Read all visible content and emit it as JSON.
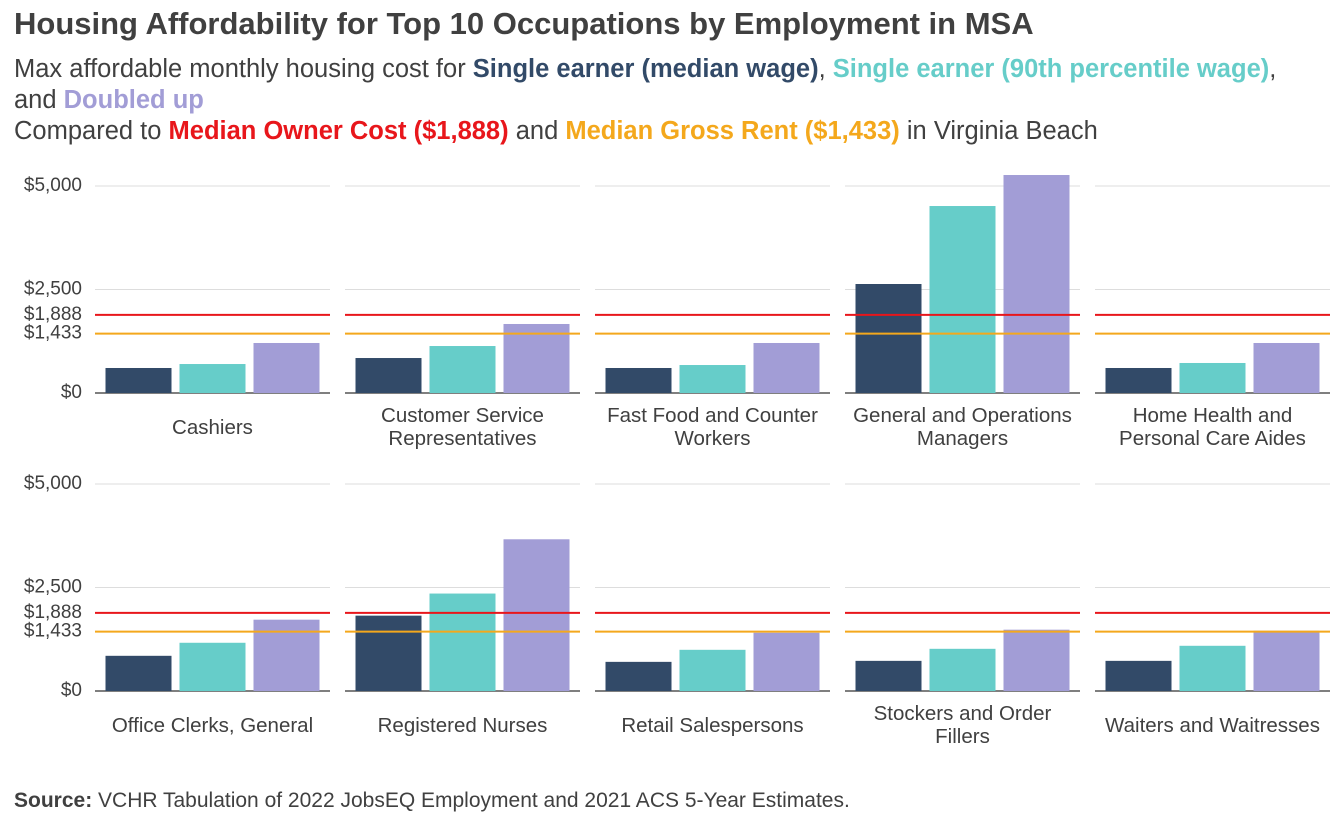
{
  "chart_data": {
    "type": "bar",
    "title": "Housing Affordability for Top 10 Occupations by Employment in MSA",
    "subtitle": {
      "lead": "Max affordable monthly housing cost for",
      "sep1": ",",
      "sep2": ", and",
      "compare": "Compared to",
      "join": "and",
      "place": "in Virginia Beach"
    },
    "categories": [
      "Cashiers",
      "Customer Service Representatives",
      "Fast Food and Counter Workers",
      "General and Operations Managers",
      "Home Health and Personal Care Aides",
      "Office Clerks, General",
      "Registered Nurses",
      "Retail Salespersons",
      "Stockers and Order Fillers",
      "Waiters and Waitresses"
    ],
    "series": [
      {
        "name": "Single earner (median wage)",
        "color": "#324a68",
        "values": [
          604,
          845,
          604,
          2633,
          604,
          850,
          1820,
          704,
          728,
          728
        ]
      },
      {
        "name": "Single earner (90th percentile wage)",
        "color": "#66cdc9",
        "values": [
          700,
          1135,
          676,
          4517,
          725,
          1165,
          2354,
          995,
          1019,
          1092
        ]
      },
      {
        "name": "Doubled up",
        "color": "#a29dd6",
        "values": [
          1208,
          1667,
          1208,
          5266,
          1208,
          1723,
          3665,
          1408,
          1481,
          1456
        ]
      }
    ],
    "reference_lines": [
      {
        "label": "Median Owner Cost ($1,888)",
        "value": 1888,
        "color": "#e8161b"
      },
      {
        "label": "Median Gross Rent ($1,433)",
        "value": 1433,
        "color": "#f4a81c"
      }
    ],
    "ylim": [
      0,
      5300
    ],
    "yticks": [
      {
        "value": 0,
        "label": "$0"
      },
      {
        "value": 1433,
        "label": "$1,433"
      },
      {
        "value": 1888,
        "label": "$1,888"
      },
      {
        "value": 2500,
        "label": "$2,500"
      },
      {
        "value": 5000,
        "label": "$5,000"
      }
    ],
    "grid": true,
    "source_label": "Source:",
    "source": "VCHR Tabulation of 2022 JobsEQ Employment and 2021 ACS 5-Year Estimates."
  }
}
